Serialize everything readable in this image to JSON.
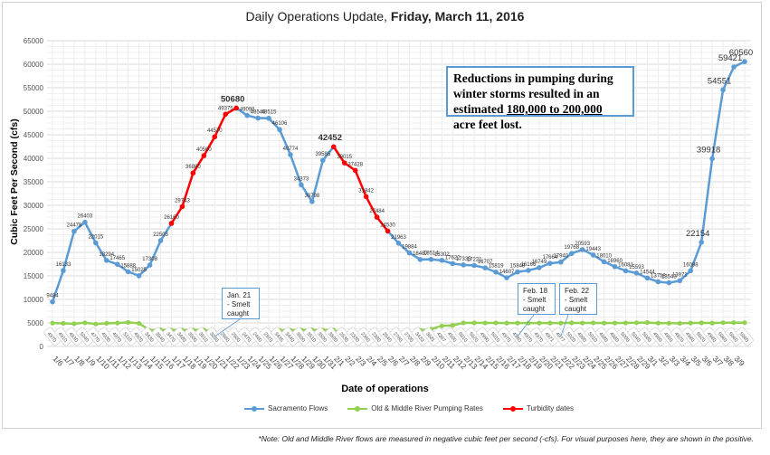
{
  "title": {
    "prefix": "Daily Operations Update, ",
    "date": "Friday, March 11, 2016"
  },
  "textbox": {
    "line1": "Reductions in pumping during winter storms resulted in an estimated",
    "highlight": "180,000 to 200,000",
    "line2": " acre feet lost."
  },
  "notes": [
    {
      "text": "Jan. 21 - Smelt caught",
      "date": "1/21"
    },
    {
      "text": "Feb. 18 - Smelt caught",
      "date": "2/18"
    },
    {
      "text": "Feb. 22 - Smelt caught",
      "date": "2/22"
    }
  ],
  "footnote": "*Note: Old and Middle River flows are measured in negative cubic feet per second (-cfs). For visual purposes here, they are shown in the positive.",
  "colors": {
    "sacramento": "#5b9bd5",
    "pumping": "#92d050",
    "turbidity": "#ff0000"
  },
  "chart_data": {
    "type": "line",
    "title": "Daily Operations Update, Friday, March 11, 2016",
    "xlabel": "Date of operations",
    "ylabel": "Cubic Feet Per Second (cfs)",
    "ylim": [
      0,
      65000
    ],
    "yticks": [
      0,
      5000,
      10000,
      15000,
      20000,
      25000,
      30000,
      35000,
      40000,
      45000,
      50000,
      55000,
      60000,
      65000
    ],
    "grid": true,
    "legend": "bottom",
    "categories": [
      "1/6",
      "1/7",
      "1/8",
      "1/9",
      "1/10",
      "1/11",
      "1/12",
      "1/13",
      "1/14",
      "1/15",
      "1/16",
      "1/17",
      "1/18",
      "1/19",
      "1/20",
      "1/21",
      "1/22",
      "1/23",
      "1/24",
      "1/25",
      "1/26",
      "1/27",
      "1/28",
      "1/29",
      "1/30",
      "1/31",
      "2/1",
      "2/2",
      "2/3",
      "2/4",
      "2/5",
      "2/6",
      "2/7",
      "2/8",
      "2/9",
      "2/10",
      "2/11",
      "2/12",
      "2/13",
      "2/14",
      "2/15",
      "2/16",
      "2/17",
      "2/18",
      "2/19",
      "2/20",
      "2/21",
      "2/22",
      "2/23",
      "2/24",
      "2/25",
      "2/26",
      "2/27",
      "2/28",
      "2/29",
      "3/1",
      "3/2",
      "3/3",
      "3/4",
      "3/5",
      "3/6",
      "3/7",
      "3/8",
      "3/9",
      ""
    ],
    "series": [
      {
        "name": "Sacramento Flows",
        "values": [
          9484,
          16133,
          24478,
          26403,
          22015,
          18294,
          17465,
          15888,
          15025,
          17308,
          22503,
          26160,
          29743,
          36880,
          40560,
          44570,
          49375,
          50680,
          49098,
          48549,
          48515,
          46106,
          40774,
          34373,
          30798,
          39585,
          42452,
          39015,
          37428,
          31842,
          27484,
          24530,
          21963,
          19884,
          18487,
          18514,
          18302,
          17622,
          17335,
          17221,
          16707,
          15819,
          14607,
          15848,
          16166,
          16749,
          17664,
          17940,
          19768,
          20593,
          19443,
          18010,
          16960,
          16081,
          15593,
          14544,
          13758,
          13543,
          13971,
          16098,
          22154,
          39918,
          54551,
          59421,
          60560
        ]
      },
      {
        "name": "Old & Middle River Pumping Rates",
        "values": [
          4970,
          4910,
          4830,
          5040,
          4770,
          4930,
          4970,
          5110,
          4920,
          3430,
          3540,
          3470,
          3480,
          3500,
          3510,
          3030,
          2560,
          2500,
          2470,
          2460,
          2920,
          3435,
          3440,
          3500,
          3510,
          3500,
          3500,
          2530,
          2330,
          2360,
          2380,
          2540,
          2760,
          2700,
          3433,
          3681,
          4367,
          4500,
          5010,
          5020,
          4990,
          5010,
          4970,
          4980,
          4970,
          4970,
          4971,
          4977,
          5020,
          4990,
          5010,
          4980,
          4980,
          5000,
          5040,
          5080,
          4960,
          4950,
          4920,
          4980,
          5020,
          4980,
          5060,
          5060,
          5060
        ]
      },
      {
        "name": "Turbidity dates",
        "ranges": [
          [
            "1/17",
            "1/23"
          ],
          [
            "2/1",
            "2/6"
          ]
        ]
      }
    ],
    "highlighted_labels": [
      50680,
      42452,
      22154,
      39918,
      54551,
      59421,
      60560
    ]
  }
}
